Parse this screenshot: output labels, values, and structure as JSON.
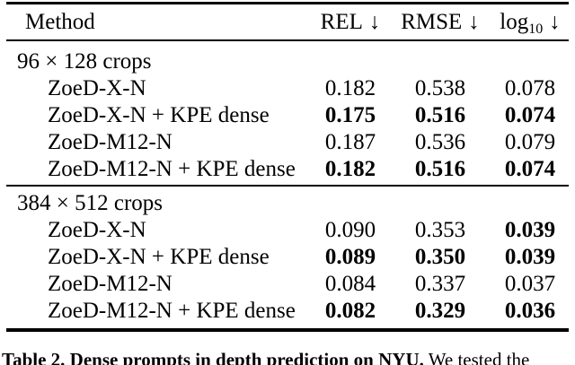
{
  "page": {
    "background": "#ffffff",
    "text_color": "#000000"
  },
  "table": {
    "header": {
      "method_label": "Method",
      "columns": [
        {
          "name": "REL",
          "sub": "",
          "arrow": "↓"
        },
        {
          "name": "RMSE",
          "sub": "",
          "arrow": "↓"
        },
        {
          "name": "log",
          "sub": "10",
          "arrow": "↓"
        }
      ]
    },
    "sections": [
      {
        "title": "96 × 128 crops",
        "rows": [
          {
            "method": "ZoeD-X-N",
            "values": [
              {
                "text": "0.182",
                "bold": false
              },
              {
                "text": "0.538",
                "bold": false
              },
              {
                "text": "0.078",
                "bold": false
              }
            ]
          },
          {
            "method": "ZoeD-X-N + KPE dense",
            "values": [
              {
                "text": "0.175",
                "bold": true
              },
              {
                "text": "0.516",
                "bold": true
              },
              {
                "text": "0.074",
                "bold": true
              }
            ]
          },
          {
            "method": "ZoeD-M12-N",
            "values": [
              {
                "text": "0.187",
                "bold": false
              },
              {
                "text": "0.536",
                "bold": false
              },
              {
                "text": "0.079",
                "bold": false
              }
            ]
          },
          {
            "method": "ZoeD-M12-N + KPE dense",
            "values": [
              {
                "text": "0.182",
                "bold": true
              },
              {
                "text": "0.516",
                "bold": true
              },
              {
                "text": "0.074",
                "bold": true
              }
            ]
          }
        ]
      },
      {
        "title": "384 × 512 crops",
        "rows": [
          {
            "method": "ZoeD-X-N",
            "values": [
              {
                "text": "0.090",
                "bold": false
              },
              {
                "text": "0.353",
                "bold": false
              },
              {
                "text": "0.039",
                "bold": true
              }
            ]
          },
          {
            "method": "ZoeD-X-N + KPE dense",
            "values": [
              {
                "text": "0.089",
                "bold": true
              },
              {
                "text": "0.350",
                "bold": true
              },
              {
                "text": "0.039",
                "bold": true
              }
            ]
          },
          {
            "method": "ZoeD-M12-N",
            "values": [
              {
                "text": "0.084",
                "bold": false
              },
              {
                "text": "0.337",
                "bold": false
              },
              {
                "text": "0.037",
                "bold": false
              }
            ]
          },
          {
            "method": "ZoeD-M12-N + KPE dense",
            "values": [
              {
                "text": "0.082",
                "bold": true
              },
              {
                "text": "0.329",
                "bold": true
              },
              {
                "text": "0.036",
                "bold": true
              }
            ]
          }
        ]
      }
    ]
  },
  "caption": {
    "label": "Table 2.",
    "title": "Dense prompts in depth prediction on NYU.",
    "text": "We tested the"
  }
}
